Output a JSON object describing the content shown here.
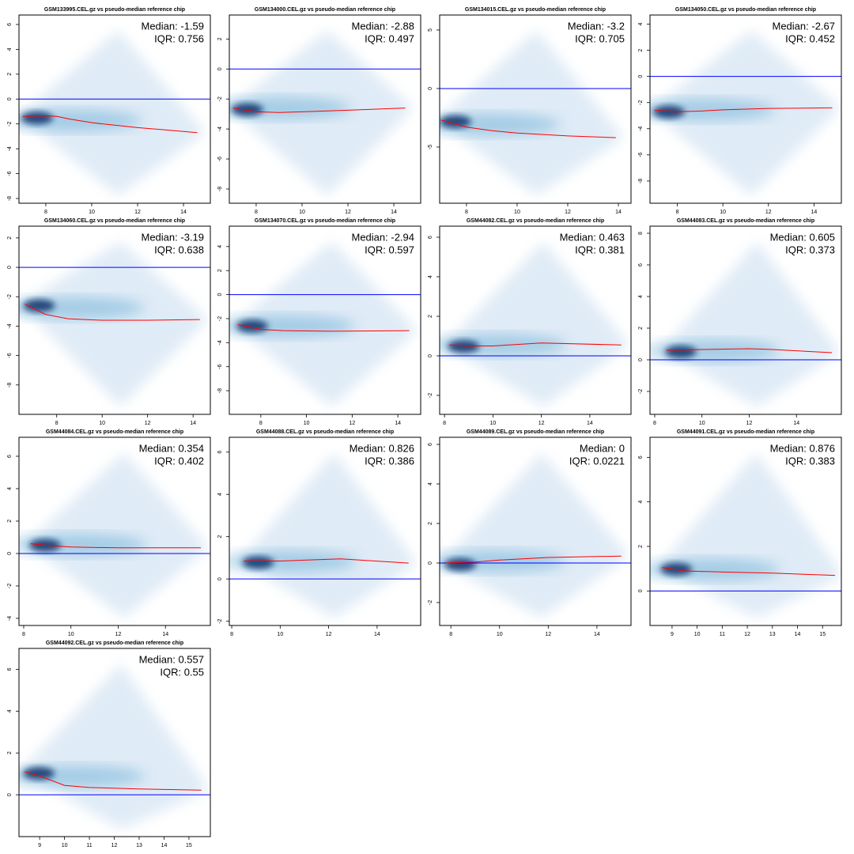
{
  "chart_data": [
    {
      "type": "line",
      "title": "GSM133995.CEL.gz vs pseudo-median reference chip",
      "annotations": [
        "Median: -1.59",
        "IQR: 0.756"
      ],
      "xlim": [
        6.83,
        15.17
      ],
      "ylim": [
        -8.38,
        6.76
      ],
      "xticks": [
        8,
        10,
        12,
        14
      ],
      "yticks": [
        -8,
        -6,
        -4,
        -2,
        0,
        2,
        4,
        6
      ],
      "hline": {
        "value": 0,
        "color": "#0000ff"
      },
      "x": [
        7,
        8,
        8.5,
        9,
        10,
        11,
        12,
        13,
        14.6
      ],
      "values": [
        -1.4,
        -1.35,
        -1.4,
        -1.6,
        -1.9,
        -2.1,
        -2.3,
        -2.45,
        -2.7
      ],
      "color": "#ff0000"
    },
    {
      "type": "line",
      "title": "GSM134000.CEL.gz vs pseudo-median reference chip",
      "annotations": [
        "Median: -2.88",
        "IQR: 0.497"
      ],
      "xlim": [
        6.83,
        15.17
      ],
      "ylim": [
        -8.95,
        3.6
      ],
      "xticks": [
        8,
        10,
        12,
        14
      ],
      "yticks": [
        -8,
        -6,
        -4,
        -2,
        0,
        2
      ],
      "hline": {
        "value": 0,
        "color": "#0000ff"
      },
      "x": [
        7,
        8,
        9,
        10,
        12,
        14.5
      ],
      "values": [
        -2.6,
        -2.85,
        -2.9,
        -2.85,
        -2.75,
        -2.6
      ],
      "color": "#ff0000"
    },
    {
      "type": "line",
      "title": "GSM134015.CEL.gz vs pseudo-median reference chip",
      "annotations": [
        "Median: -3.2",
        "IQR: 0.705"
      ],
      "xlim": [
        6.94,
        14.5
      ],
      "ylim": [
        -9.8,
        6.28
      ],
      "xticks": [
        8,
        10,
        12,
        14
      ],
      "yticks": [
        -5,
        0,
        5
      ],
      "hline": {
        "value": 0,
        "color": "#0000ff"
      },
      "x": [
        7,
        8,
        9,
        10,
        12,
        13.9
      ],
      "values": [
        -2.7,
        -3.3,
        -3.6,
        -3.8,
        -4.05,
        -4.2
      ],
      "color": "#ff0000"
    },
    {
      "type": "line",
      "title": "GSM134050.CEL.gz vs pseudo-median reference chip",
      "annotations": [
        "Median: -2.67",
        "IQR: 0.452"
      ],
      "xlim": [
        6.8,
        15.2
      ],
      "ylim": [
        -9.7,
        4.7
      ],
      "xticks": [
        8,
        10,
        12,
        14
      ],
      "yticks": [
        -8,
        -6,
        -4,
        -2,
        0,
        2,
        4
      ],
      "hline": {
        "value": 0,
        "color": "#0000ff"
      },
      "x": [
        7,
        8,
        9,
        10,
        12,
        14.8
      ],
      "values": [
        -2.6,
        -2.7,
        -2.65,
        -2.55,
        -2.45,
        -2.4
      ],
      "color": "#ff0000"
    },
    {
      "type": "line",
      "title": "GSM134060.CEL.gz vs pseudo-median reference chip",
      "annotations": [
        "Median: -3.19",
        "IQR: 0.638"
      ],
      "xlim": [
        6.34,
        14.76
      ],
      "ylim": [
        -10,
        2.8
      ],
      "xticks": [
        8,
        10,
        12,
        14
      ],
      "yticks": [
        -8,
        -6,
        -4,
        -2,
        0,
        2
      ],
      "hline": {
        "value": 0,
        "color": "#0000ff"
      },
      "x": [
        6.6,
        7.5,
        8.5,
        10,
        12,
        14.3
      ],
      "values": [
        -2.5,
        -3.2,
        -3.5,
        -3.6,
        -3.6,
        -3.55
      ],
      "color": "#ff0000"
    },
    {
      "type": "line",
      "title": "GSM134070.CEL.gz vs pseudo-median reference chip",
      "annotations": [
        "Median: -2.94",
        "IQR: 0.597"
      ],
      "xlim": [
        6.62,
        15
      ],
      "ylim": [
        -9.97,
        5.7
      ],
      "xticks": [
        8,
        10,
        12,
        14
      ],
      "yticks": [
        -8,
        -6,
        -4,
        -2,
        0,
        2,
        4
      ],
      "hline": {
        "value": 0,
        "color": "#0000ff"
      },
      "x": [
        7,
        8,
        9,
        11,
        14.5
      ],
      "values": [
        -2.5,
        -2.9,
        -3,
        -3.05,
        -3
      ],
      "color": "#ff0000"
    },
    {
      "type": "line",
      "title": "GSM44082.CEL.gz vs pseudo-median reference chip",
      "annotations": [
        "Median: 0.463",
        "IQR: 0.381"
      ],
      "xlim": [
        7.8,
        15.7
      ],
      "ylim": [
        -2.96,
        6.56
      ],
      "xticks": [
        8,
        10,
        12,
        14
      ],
      "yticks": [
        -2,
        0,
        2,
        4,
        6
      ],
      "hline": {
        "value": 0,
        "color": "#0000ff"
      },
      "x": [
        8.2,
        9,
        10,
        12,
        15.3
      ],
      "values": [
        0.55,
        0.5,
        0.5,
        0.65,
        0.55
      ],
      "color": "#ff0000"
    },
    {
      "type": "line",
      "title": "GSM44083.CEL.gz vs pseudo-median reference chip",
      "annotations": [
        "Median: 0.605",
        "IQR: 0.373"
      ],
      "xlim": [
        7.8,
        15.9
      ],
      "ylim": [
        -3.45,
        8.45
      ],
      "xticks": [
        8,
        10,
        12,
        14
      ],
      "yticks": [
        -2,
        0,
        2,
        4,
        6,
        8
      ],
      "hline": {
        "value": 0,
        "color": "#0000ff"
      },
      "x": [
        8.5,
        10,
        12,
        13,
        15.5
      ],
      "values": [
        0.6,
        0.65,
        0.7,
        0.65,
        0.45
      ],
      "color": "#ff0000"
    },
    {
      "type": "line",
      "title": "GSM44084.CEL.gz vs pseudo-median reference chip",
      "annotations": [
        "Median: 0.354",
        "IQR: 0.402"
      ],
      "xlim": [
        7.8,
        15.9
      ],
      "ylim": [
        -4.44,
        7.17
      ],
      "xticks": [
        8,
        10,
        12,
        14
      ],
      "yticks": [
        -4,
        -2,
        0,
        2,
        4,
        6
      ],
      "hline": {
        "value": 0,
        "color": "#0000ff"
      },
      "x": [
        8.3,
        9,
        10,
        12,
        15.5
      ],
      "values": [
        0.6,
        0.5,
        0.4,
        0.35,
        0.35
      ],
      "color": "#ff0000"
    },
    {
      "type": "line",
      "title": "GSM44088.CEL.gz vs pseudo-median reference chip",
      "annotations": [
        "Median: 0.826",
        "IQR: 0.386"
      ],
      "xlim": [
        7.9,
        15.8
      ],
      "ylim": [
        -2.2,
        6.7
      ],
      "xticks": [
        8,
        10,
        12,
        14
      ],
      "yticks": [
        -2,
        0,
        2,
        4,
        6
      ],
      "hline": {
        "value": 0,
        "color": "#0000ff"
      },
      "x": [
        8.5,
        10,
        12.5,
        15.3
      ],
      "values": [
        0.85,
        0.85,
        0.95,
        0.75
      ],
      "color": "#ff0000"
    },
    {
      "type": "line",
      "title": "GSM44089.CEL.gz vs pseudo-median reference chip",
      "annotations": [
        "Median: 0",
        "IQR: 0.0221"
      ],
      "xlim": [
        7.54,
        15.4
      ],
      "ylim": [
        -3.16,
        6.36
      ],
      "xticks": [
        8,
        10,
        12,
        14
      ],
      "yticks": [
        -2,
        0,
        2,
        4,
        6
      ],
      "hline": {
        "value": 0,
        "color": "#0000ff"
      },
      "x": [
        7.8,
        9,
        10,
        12,
        15
      ],
      "values": [
        0,
        0.05,
        0.15,
        0.28,
        0.35
      ],
      "color": "#ff0000"
    },
    {
      "type": "line",
      "title": "GSM44091.CEL.gz vs pseudo-median reference chip",
      "annotations": [
        "Median: 0.876",
        "IQR: 0.383"
      ],
      "xlim": [
        8.12,
        15.75
      ],
      "ylim": [
        -1.55,
        6.9
      ],
      "xticks": [
        9,
        10,
        11,
        12,
        13,
        14,
        15
      ],
      "yticks": [
        0,
        2,
        4,
        6
      ],
      "hline": {
        "value": 0,
        "color": "#0000ff"
      },
      "x": [
        8.6,
        9.5,
        11,
        13,
        15.5
      ],
      "values": [
        1.05,
        0.9,
        0.85,
        0.8,
        0.7
      ],
      "color": "#ff0000"
    },
    {
      "type": "line",
      "title": "GSM44092.CEL.gz vs pseudo-median reference chip",
      "annotations": [
        "Median: 0.557",
        "IQR: 0.55"
      ],
      "xlim": [
        8.17,
        15.86
      ],
      "ylim": [
        -2,
        7
      ],
      "xticks": [
        9,
        10,
        11,
        12,
        13,
        14,
        15
      ],
      "yticks": [
        0,
        2,
        4,
        6
      ],
      "hline": {
        "value": 0,
        "color": "#0000ff"
      },
      "x": [
        8.4,
        9,
        10,
        11,
        13,
        15.5
      ],
      "values": [
        1.1,
        0.9,
        0.45,
        0.35,
        0.28,
        0.22
      ],
      "color": "#ff0000"
    }
  ]
}
